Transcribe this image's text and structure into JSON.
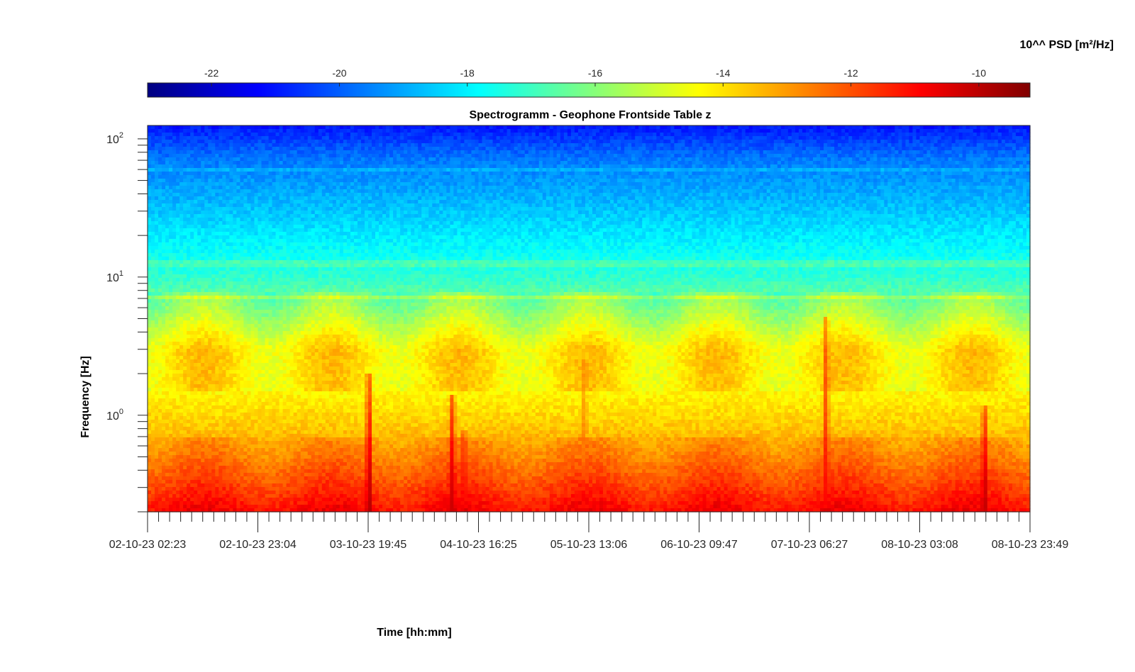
{
  "chart_data": {
    "type": "heatmap",
    "title": "Spectrogramm - Geophone Frontside Table z",
    "xlabel": "Time [hh:mm]",
    "ylabel": "Frequency [Hz]",
    "y_scale": "log",
    "ylim": [
      0.2,
      125
    ],
    "y_ticks": [
      {
        "value": 1,
        "base": "10",
        "exp": "0"
      },
      {
        "value": 10,
        "base": "10",
        "exp": "1"
      },
      {
        "value": 100,
        "base": "10",
        "exp": "2"
      }
    ],
    "x_ticks": [
      "02-10-23 02:23",
      "02-10-23 23:04",
      "03-10-23 19:45",
      "04-10-23 16:25",
      "05-10-23 13:06",
      "06-10-23 09:47",
      "07-10-23 06:27",
      "08-10-23 03:08",
      "08-10-23 23:49"
    ],
    "x_minor_per_major": 10,
    "colorbar": {
      "label": "10^^ PSD [m²/Hz]",
      "range": [
        -23,
        -9.2
      ],
      "ticks": [
        -22,
        -20,
        -18,
        -16,
        -14,
        -12,
        -10
      ],
      "colormap": "jet",
      "position": "top"
    },
    "psd_profile_log10": [
      {
        "f": 0.2,
        "v": -11.2
      },
      {
        "f": 0.3,
        "v": -12.0
      },
      {
        "f": 0.5,
        "v": -12.9
      },
      {
        "f": 0.8,
        "v": -13.6
      },
      {
        "f": 1.5,
        "v": -14.3
      },
      {
        "f": 3.0,
        "v": -14.2
      },
      {
        "f": 6.0,
        "v": -16.0
      },
      {
        "f": 10,
        "v": -17.2
      },
      {
        "f": 30,
        "v": -18.6
      },
      {
        "f": 70,
        "v": -19.6
      },
      {
        "f": 125,
        "v": -21.0
      }
    ],
    "transient_events": [
      {
        "day": 1.73,
        "v": -9.6,
        "f_top": 2.0
      },
      {
        "day": 2.38,
        "v": -10.2,
        "f_top": 1.4
      },
      {
        "day": 2.47,
        "v": -11.0,
        "f_top": 0.8
      },
      {
        "day": 3.41,
        "v": -12.5,
        "f_top": 2.5
      },
      {
        "day": 5.3,
        "v": -11.0,
        "f_top": 5.0
      },
      {
        "day": 6.54,
        "v": -10.0,
        "f_top": 1.2
      }
    ]
  }
}
